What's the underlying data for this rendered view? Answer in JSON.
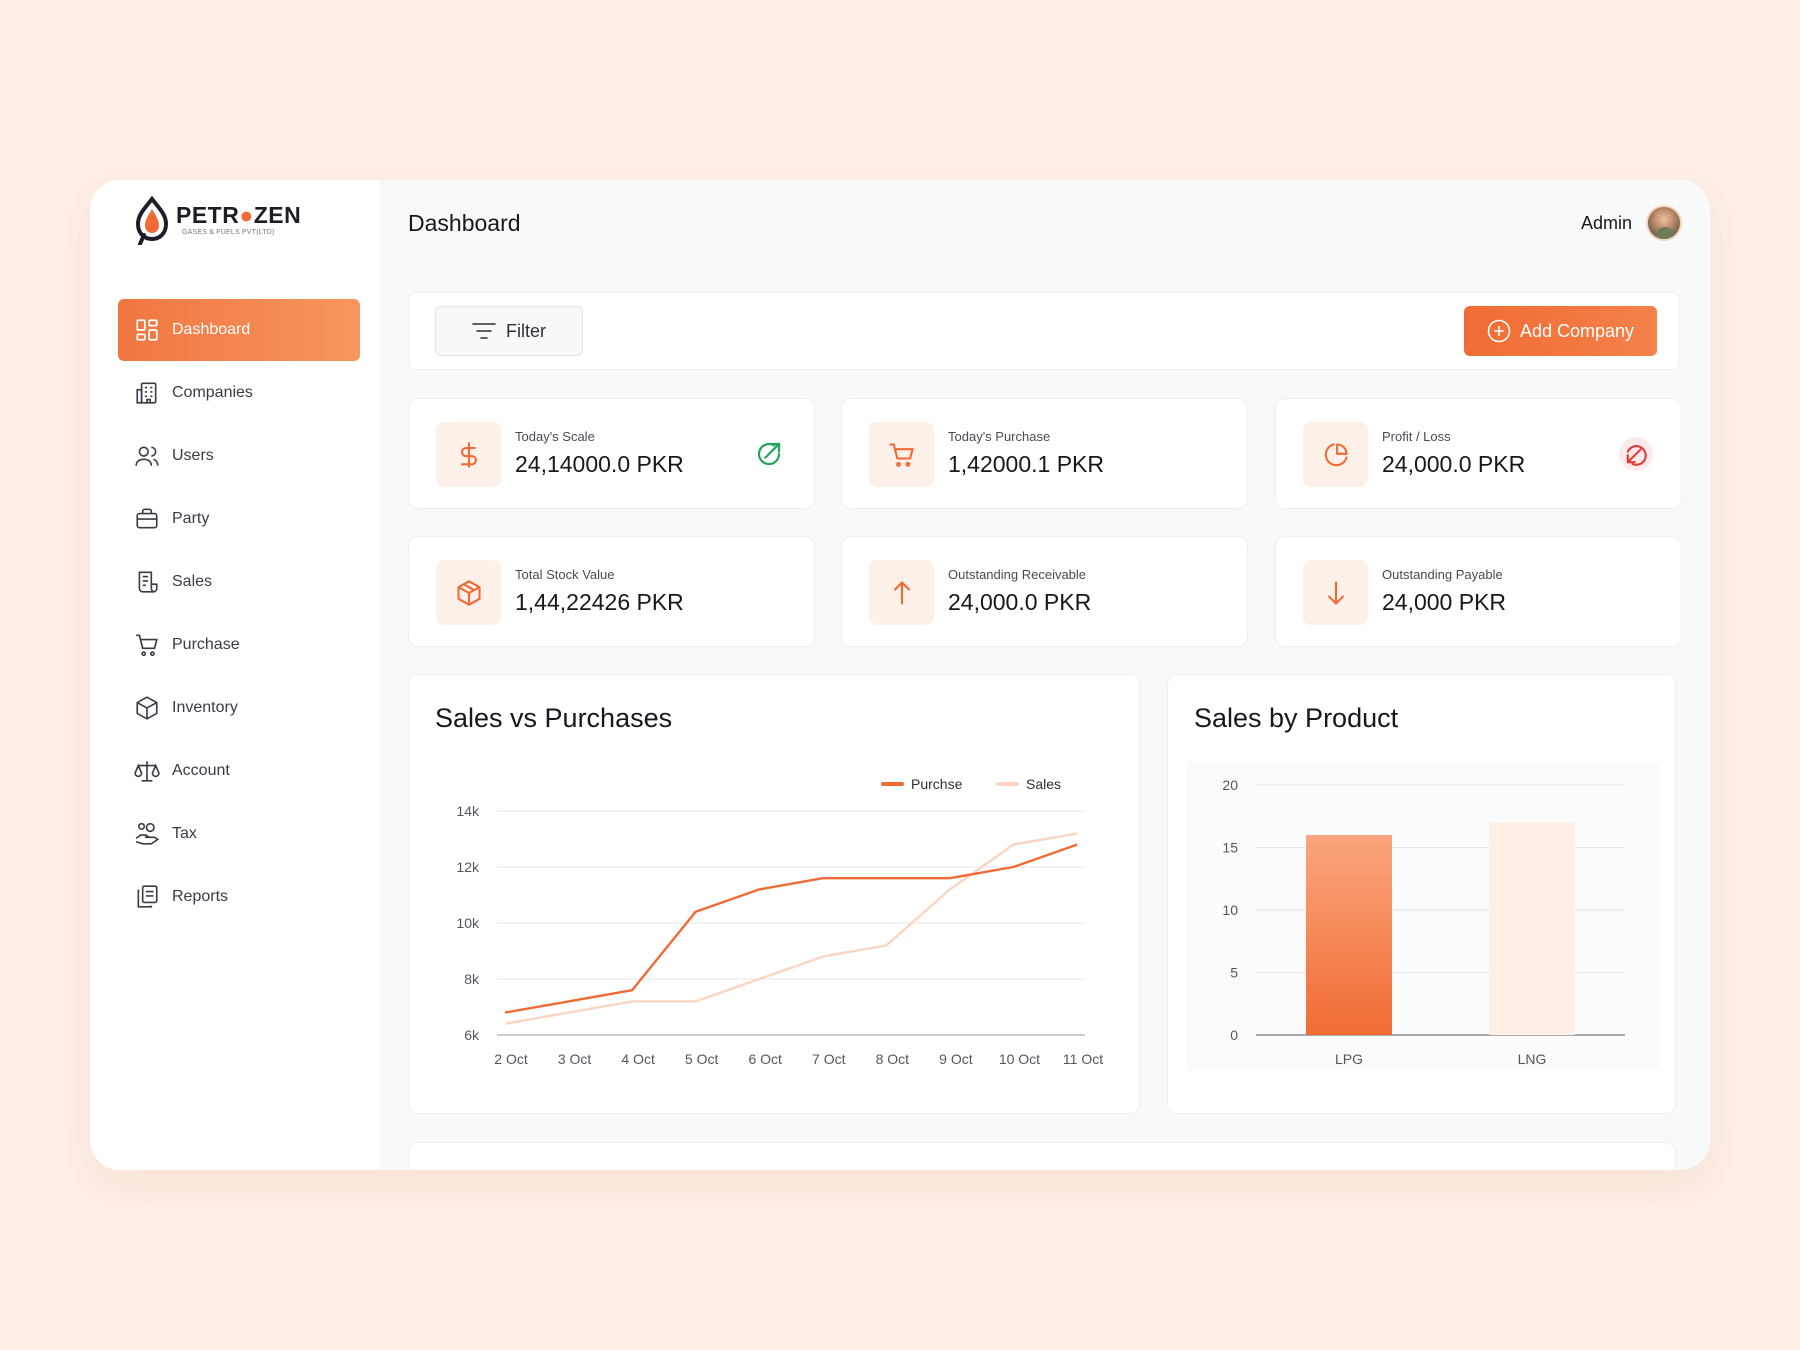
{
  "brand": {
    "name_part1": "PETR",
    "name_part2": "ZEN",
    "tagline": "GASES & FUELS PVT(LTD)"
  },
  "sidebar": {
    "items": [
      {
        "label": "Dashboard",
        "icon": "dashboard-grid-icon",
        "active": true
      },
      {
        "label": "Companies",
        "icon": "building-icon",
        "active": false
      },
      {
        "label": "Users",
        "icon": "users-icon",
        "active": false
      },
      {
        "label": "Party",
        "icon": "briefcase-icon",
        "active": false
      },
      {
        "label": "Sales",
        "icon": "receipt-icon",
        "active": false
      },
      {
        "label": "Purchase",
        "icon": "cart-icon",
        "active": false
      },
      {
        "label": "Inventory",
        "icon": "box-icon",
        "active": false
      },
      {
        "label": "Account",
        "icon": "scale-icon",
        "active": false
      },
      {
        "label": "Tax",
        "icon": "hand-coin-icon",
        "active": false
      },
      {
        "label": "Reports",
        "icon": "copy-icon",
        "active": false
      }
    ]
  },
  "header": {
    "title": "Dashboard",
    "user_name": "Admin"
  },
  "toolbar": {
    "filter_label": "Filter",
    "add_label": "Add Company"
  },
  "stats": [
    {
      "label": "Today's Scale",
      "value": "24,14000.0 PKR",
      "icon": "dollar-icon",
      "badge": "trend-up-icon",
      "badge_color": "#22a559"
    },
    {
      "label": "Today's Purchase",
      "value": "1,42000.1 PKR",
      "icon": "cart-icon",
      "badge": null
    },
    {
      "label": "Profit / Loss",
      "value": "24,000.0 PKR",
      "icon": "pie-icon",
      "badge": "trend-down-icon",
      "badge_color": "#e23b3b"
    },
    {
      "label": "Total Stock Value",
      "value": "1,44,22426 PKR",
      "icon": "box-icon",
      "badge": null
    },
    {
      "label": "Outstanding Receivable",
      "value": "24,000.0 PKR",
      "icon": "arrow-up-icon",
      "badge": null
    },
    {
      "label": "Outstanding Payable",
      "value": "24,000 PKR",
      "icon": "arrow-down-icon",
      "badge": null
    }
  ],
  "colors": {
    "accent": "#f06c33",
    "accent_light": "#fbd7c5",
    "bg": "#fdefe7"
  },
  "chart_data": [
    {
      "type": "line",
      "title": "Sales vs Purchases",
      "categories": [
        "2 Oct",
        "3 Oct",
        "4 Oct",
        "5 Oct",
        "6 Oct",
        "7 Oct",
        "8 Oct",
        "9 Oct",
        "10 Oct",
        "11 Oct"
      ],
      "series": [
        {
          "name": "Purchse",
          "color": "#ef6a35",
          "values": [
            6800,
            7200,
            7600,
            10400,
            11200,
            11600,
            11600,
            11600,
            12000,
            12800
          ]
        },
        {
          "name": "Sales",
          "color": "#fbd5c2",
          "values": [
            6400,
            6800,
            7200,
            7200,
            8000,
            8800,
            9200,
            11200,
            12800,
            13200
          ]
        }
      ],
      "yticks": [
        "6k",
        "8k",
        "10k",
        "12k",
        "14k"
      ],
      "ylim": [
        6000,
        14000
      ],
      "legend": "top-right",
      "grid": true
    },
    {
      "type": "bar",
      "title": "Sales by Product",
      "categories": [
        "LPG",
        "LNG"
      ],
      "values": [
        16,
        17
      ],
      "yticks": [
        "0",
        "5",
        "10",
        "15",
        "20"
      ],
      "ylim": [
        0,
        20
      ],
      "grid": true
    }
  ]
}
